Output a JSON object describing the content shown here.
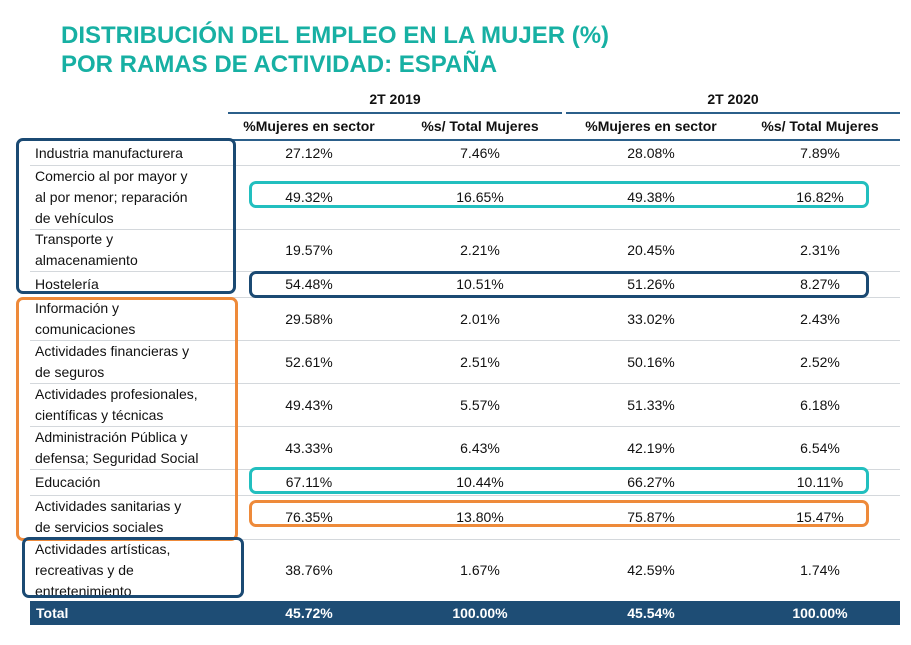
{
  "title": {
    "line1": "DISTRIBUCIÓN DEL EMPLEO EN LA MUJER (%)",
    "line2": "POR RAMAS DE ACTIVIDAD: ESPAÑA"
  },
  "periods": [
    "2T 2019",
    "2T 2020"
  ],
  "columns": [
    "%Mujeres en sector",
    "%s/ Total Mujeres",
    "%Mujeres en sector",
    "%s/ Total Mujeres"
  ],
  "rows": [
    {
      "label": [
        "Industria manufacturera"
      ],
      "values": [
        "27.12%",
        "7.46%",
        "28.08%",
        "7.89%"
      ]
    },
    {
      "label": [
        "Comercio al por mayor y",
        "al por menor; reparación",
        "de vehículos"
      ],
      "values": [
        "49.32%",
        "16.65%",
        "49.38%",
        "16.82%"
      ]
    },
    {
      "label": [
        "Transporte y",
        "almacenamiento"
      ],
      "values": [
        "19.57%",
        "2.21%",
        "20.45%",
        "2.31%"
      ]
    },
    {
      "label": [
        "Hostelería"
      ],
      "values": [
        "54.48%",
        "10.51%",
        "51.26%",
        "8.27%"
      ]
    },
    {
      "label": [
        "Información y",
        "comunicaciones"
      ],
      "values": [
        "29.58%",
        "2.01%",
        "33.02%",
        "2.43%"
      ]
    },
    {
      "label": [
        "Actividades financieras y",
        "de seguros"
      ],
      "values": [
        "52.61%",
        "2.51%",
        "50.16%",
        "2.52%"
      ]
    },
    {
      "label": [
        "Actividades profesionales,",
        "científicas y técnicas"
      ],
      "values": [
        "49.43%",
        "5.57%",
        "51.33%",
        "6.18%"
      ]
    },
    {
      "label": [
        "Administración Pública y",
        "defensa; Seguridad Social"
      ],
      "values": [
        "43.33%",
        "6.43%",
        "42.19%",
        "6.54%"
      ]
    },
    {
      "label": [
        "Educación"
      ],
      "values": [
        "67.11%",
        "10.44%",
        "66.27%",
        "10.11%"
      ]
    },
    {
      "label": [
        "Actividades sanitarias y",
        "de servicios sociales"
      ],
      "values": [
        "76.35%",
        "13.80%",
        "75.87%",
        "15.47%"
      ]
    },
    {
      "label": [
        "Actividades artísticas,",
        "recreativas y de",
        "entretenimiento"
      ],
      "values": [
        "38.76%",
        "1.67%",
        "42.59%",
        "1.74%"
      ]
    }
  ],
  "total": {
    "label": "Total",
    "values": [
      "45.72%",
      "100.00%",
      "45.54%",
      "100.00%"
    ]
  },
  "colors": {
    "title": "#17b0a3",
    "navy": "#1b4a73",
    "teal": "#22bfbf",
    "orange": "#ee8a3a",
    "total_bg": "#1e4d75"
  }
}
